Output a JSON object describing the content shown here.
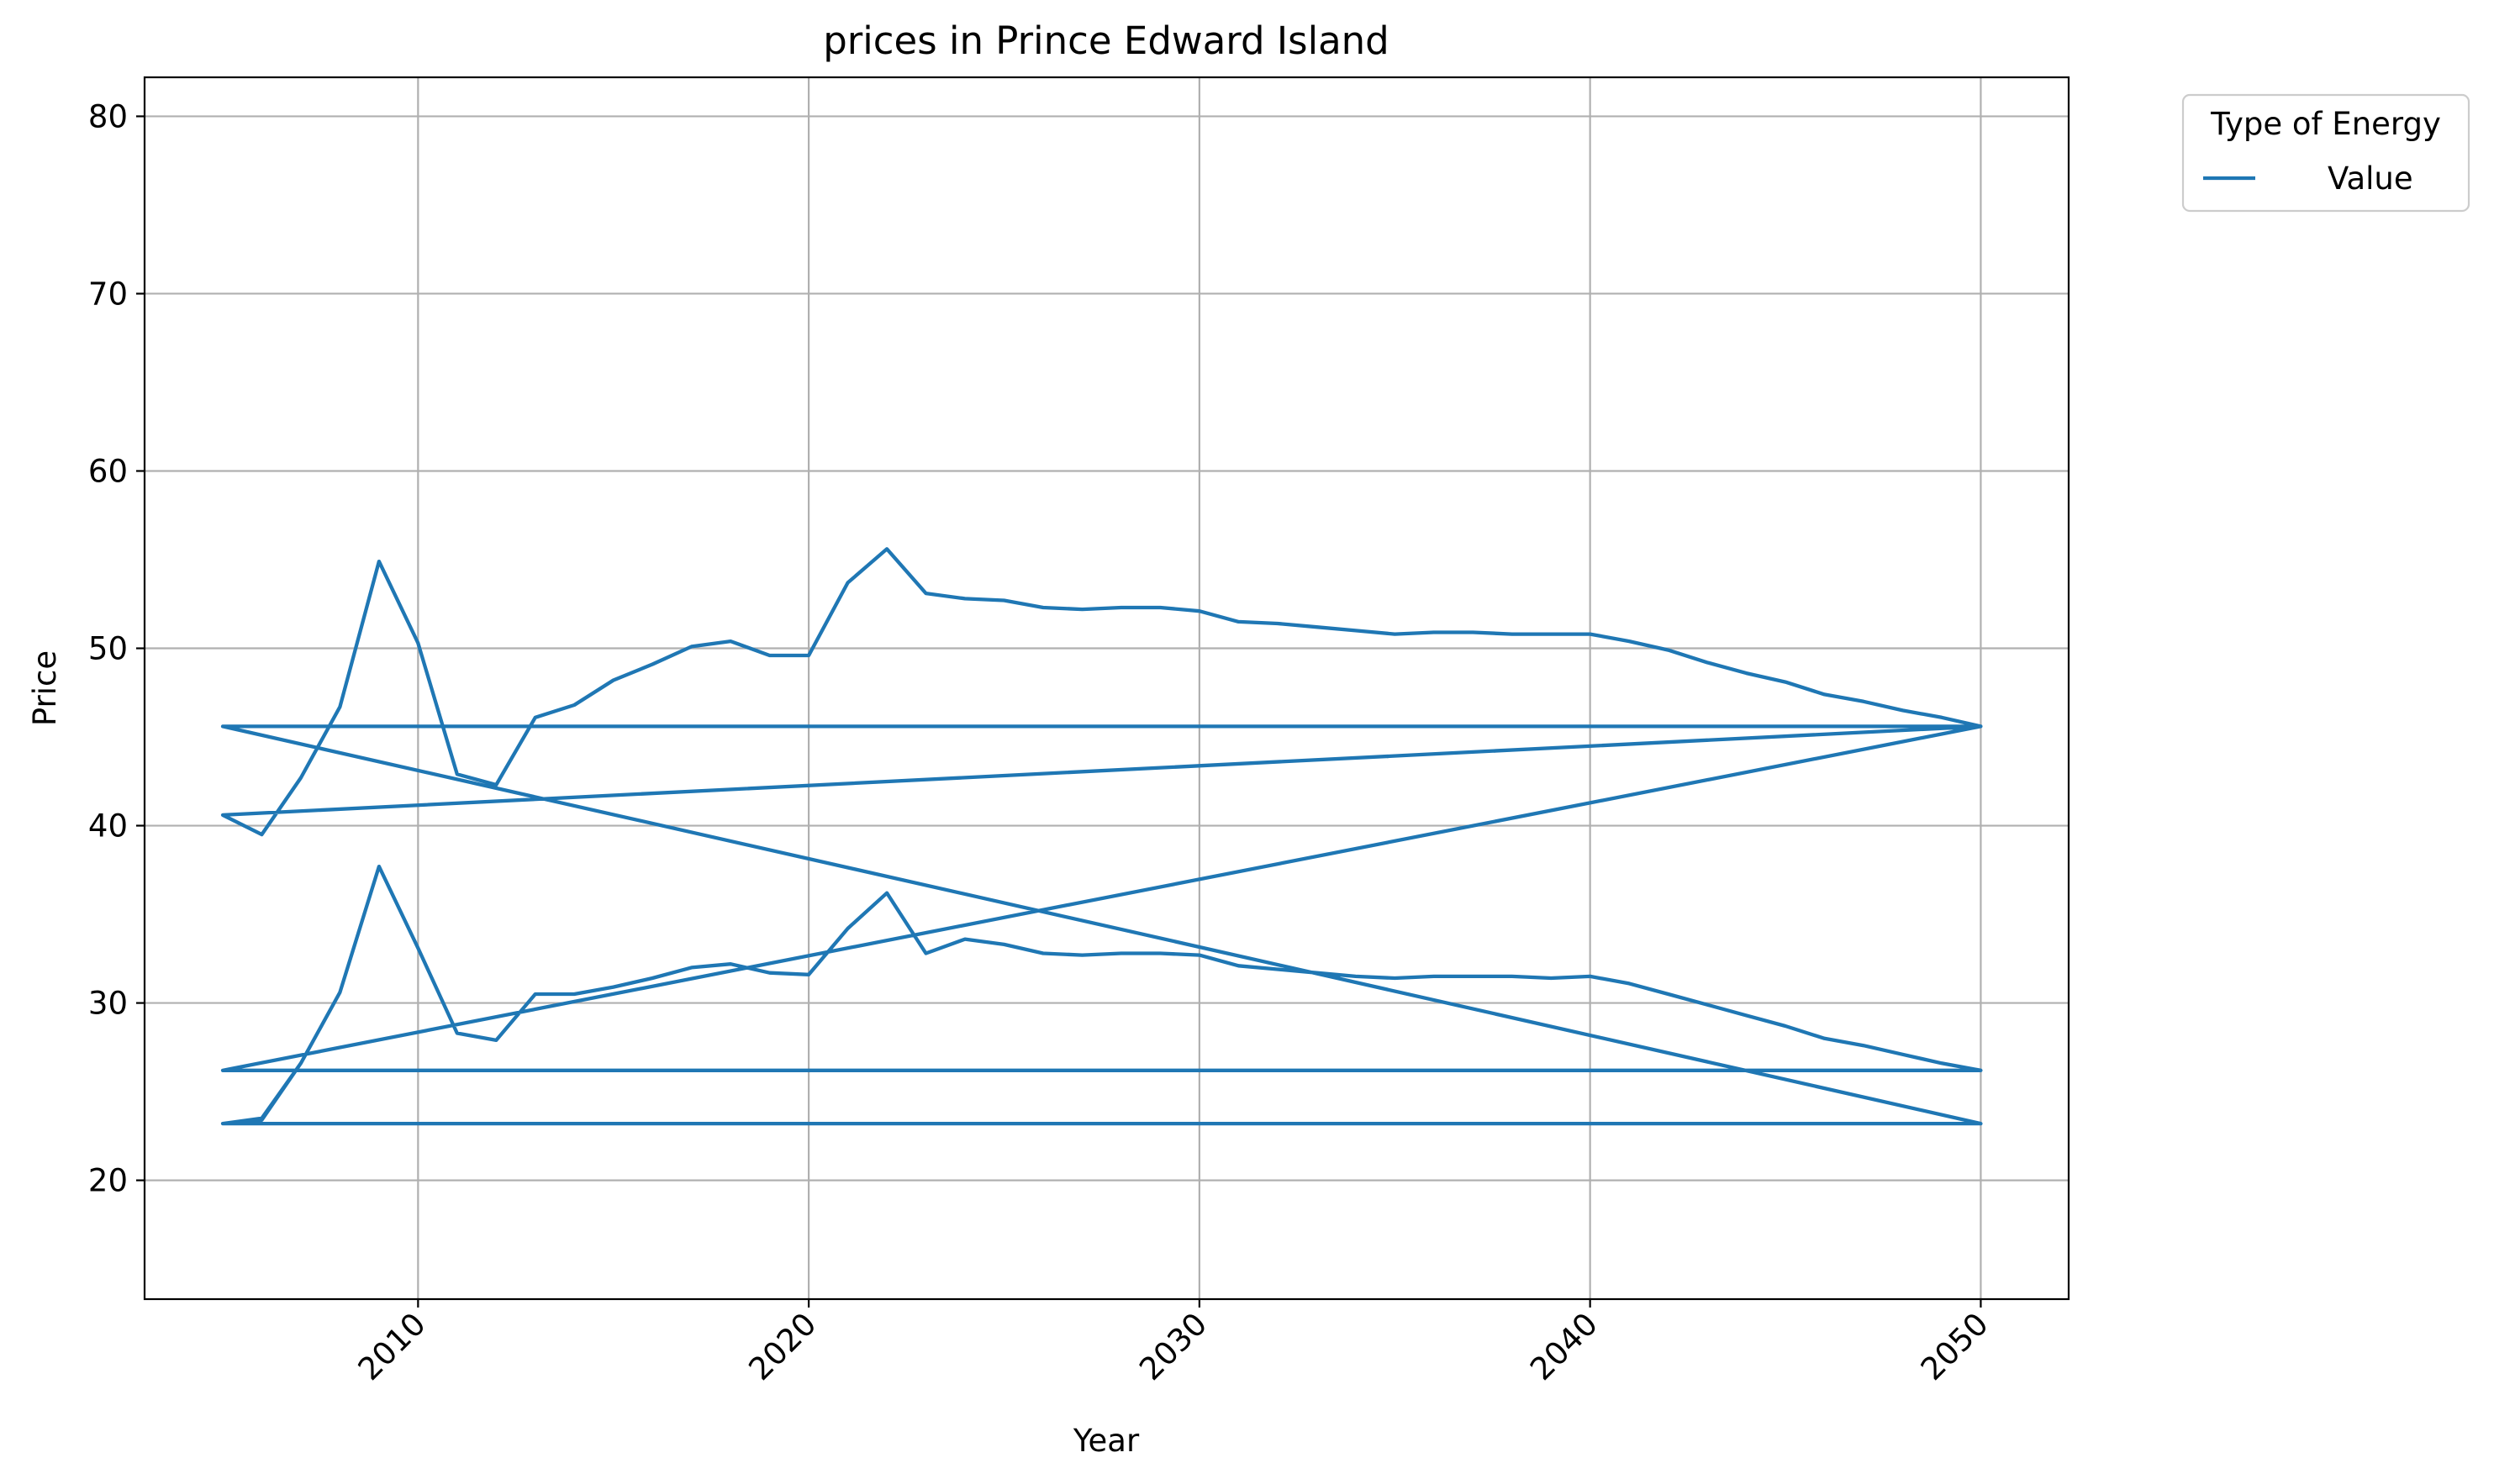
{
  "chart_data": {
    "type": "line",
    "title": "prices in Prince Edward Island",
    "xlabel": "Year",
    "ylabel": "Price",
    "xlim": [
      2003.0,
      2052.25
    ],
    "ylim": [
      13.3,
      82.2
    ],
    "x_ticks": [
      2010,
      2020,
      2030,
      2040,
      2050
    ],
    "y_ticks": [
      20,
      30,
      40,
      50,
      60,
      70,
      80
    ],
    "grid": true,
    "legend": {
      "title": "Type of Energy",
      "placement": "upper-right-outside"
    },
    "series": [
      {
        "name": "Value",
        "color": "#1f77b4",
        "x": [
          2005,
          2006,
          2007,
          2008,
          2009,
          2010,
          2011,
          2012,
          2013,
          2014,
          2015,
          2016,
          2017,
          2018,
          2019,
          2020,
          2021,
          2022,
          2023,
          2024,
          2025,
          2026,
          2027,
          2028,
          2029,
          2030,
          2031,
          2032,
          2033,
          2034,
          2035,
          2036,
          2037,
          2038,
          2039,
          2040,
          2041,
          2042,
          2043,
          2044,
          2045,
          2046,
          2047,
          2048,
          2049,
          2050,
          2005,
          2050,
          2005,
          2006,
          2007,
          2008,
          2009,
          2010,
          2011,
          2012,
          2013,
          2014,
          2015,
          2016,
          2017,
          2018,
          2019,
          2020,
          2021,
          2022,
          2023,
          2024,
          2025,
          2026,
          2027,
          2028,
          2029,
          2030,
          2031,
          2032,
          2033,
          2034,
          2035,
          2036,
          2037,
          2038,
          2039,
          2040,
          2041,
          2042,
          2043,
          2044,
          2045,
          2046,
          2047,
          2048,
          2049,
          2050,
          2005,
          2050,
          2005,
          2006,
          2007,
          2008,
          2009,
          2010,
          2011,
          2012,
          2013,
          2014,
          2015,
          2016,
          2017,
          2018,
          2019,
          2020,
          2021,
          2022,
          2023,
          2024,
          2025,
          2026,
          2027,
          2028,
          2029,
          2030,
          2031,
          2032,
          2033,
          2034,
          2035,
          2036,
          2037,
          2038,
          2039,
          2040,
          2041,
          2042,
          2043,
          2044,
          2045,
          2046,
          2047,
          2048,
          2049,
          2050
        ],
        "y": [
          23.2,
          23.4,
          26.6,
          30.6,
          37.7,
          33.1,
          28.3,
          27.9,
          30.5,
          30.5,
          30.9,
          31.4,
          32.0,
          32.2,
          31.7,
          31.6,
          34.2,
          36.2,
          32.8,
          33.6,
          33.3,
          32.8,
          32.7,
          32.8,
          32.8,
          32.7,
          32.1,
          31.9,
          31.7,
          31.5,
          31.4,
          31.5,
          31.5,
          31.5,
          31.4,
          31.5,
          31.1,
          30.5,
          29.9,
          29.3,
          28.7,
          28.0,
          27.6,
          27.1,
          26.6,
          26.2,
          26.2,
          45.6,
          40.6,
          39.5,
          42.7,
          46.7,
          54.9,
          50.3,
          42.9,
          42.3,
          46.1,
          46.8,
          48.2,
          49.1,
          50.1,
          50.4,
          49.6,
          49.6,
          53.7,
          55.6,
          53.1,
          52.8,
          52.7,
          52.3,
          52.2,
          52.3,
          52.3,
          52.1,
          51.5,
          51.4,
          51.2,
          51.0,
          50.8,
          50.9,
          50.9,
          50.8,
          50.8,
          50.8,
          50.4,
          49.9,
          49.2,
          48.6,
          48.1,
          47.4,
          47.0,
          46.5,
          46.1,
          45.6,
          45.6,
          23.2,
          23.2,
          23.5,
          26.6,
          30.6,
          37.7,
          33.1,
          28.3,
          27.9,
          30.5,
          30.5,
          30.9,
          31.4,
          32.0,
          32.2,
          31.7,
          31.6,
          34.2,
          36.2,
          32.8,
          33.6,
          33.3,
          32.8,
          32.7,
          32.8,
          32.8,
          32.7,
          32.1,
          31.9,
          31.7,
          31.5,
          31.4,
          31.5,
          31.5,
          31.5,
          31.4,
          31.5,
          31.1,
          30.5,
          29.9,
          29.3,
          28.7,
          28.0,
          27.6,
          27.1,
          26.6,
          26.2
        ]
      }
    ]
  }
}
